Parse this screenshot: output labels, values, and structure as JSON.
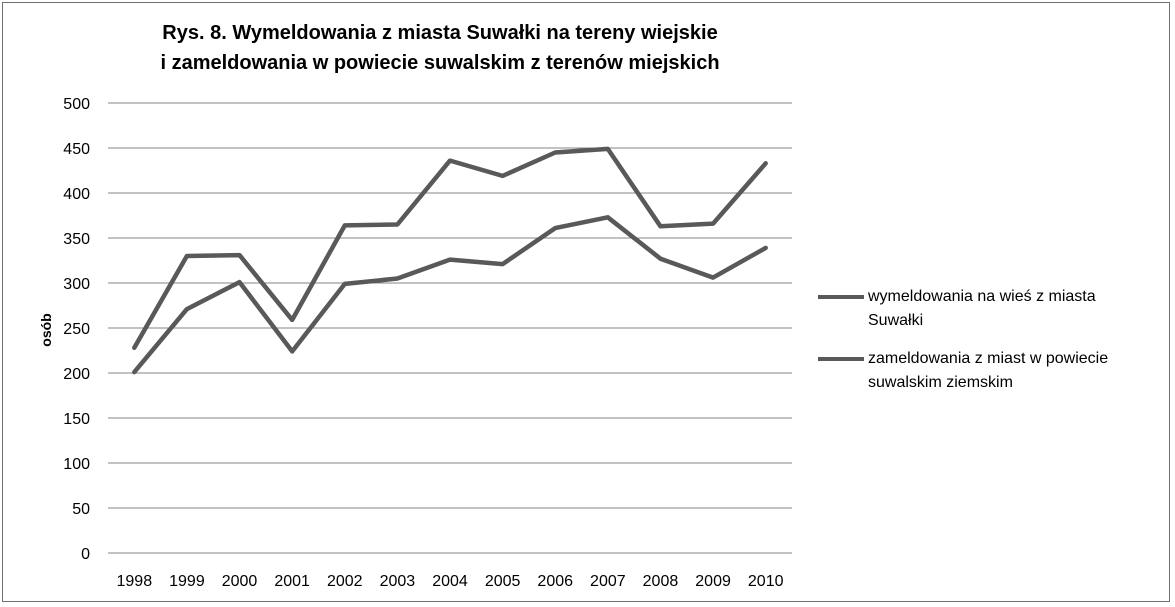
{
  "chart_data": {
    "type": "line",
    "title_lines": [
      "Rys. 8. Wymeldowania z miasta Suwałki na tereny wiejskie",
      "i zameldowania w powiecie suwalskim z terenów miejskich"
    ],
    "xlabel": "",
    "ylabel": "osób",
    "categories": [
      "1998",
      "1999",
      "2000",
      "2001",
      "2002",
      "2003",
      "2004",
      "2005",
      "2006",
      "2007",
      "2008",
      "2009",
      "2010"
    ],
    "yticks": [
      0,
      50,
      100,
      150,
      200,
      250,
      300,
      350,
      400,
      450,
      500
    ],
    "ylim": [
      0,
      500
    ],
    "grid": true,
    "legend_position": "right",
    "line_color": "#595959",
    "series": [
      {
        "name": "wymeldowania na wieś z miasta Suwałki",
        "legend_lines": [
          "wymeldowania na wieś z miasta",
          "Suwałki"
        ],
        "values": [
          228,
          330,
          331,
          259,
          364,
          365,
          436,
          419,
          445,
          449,
          363,
          366,
          433
        ]
      },
      {
        "name": "zameldowania z miast w powiecie suwalskim ziemskim",
        "legend_lines": [
          "zameldowania z miast w powiecie",
          "suwalskim ziemskim"
        ],
        "values": [
          201,
          271,
          301,
          224,
          299,
          305,
          326,
          321,
          361,
          373,
          327,
          306,
          339
        ]
      }
    ]
  }
}
